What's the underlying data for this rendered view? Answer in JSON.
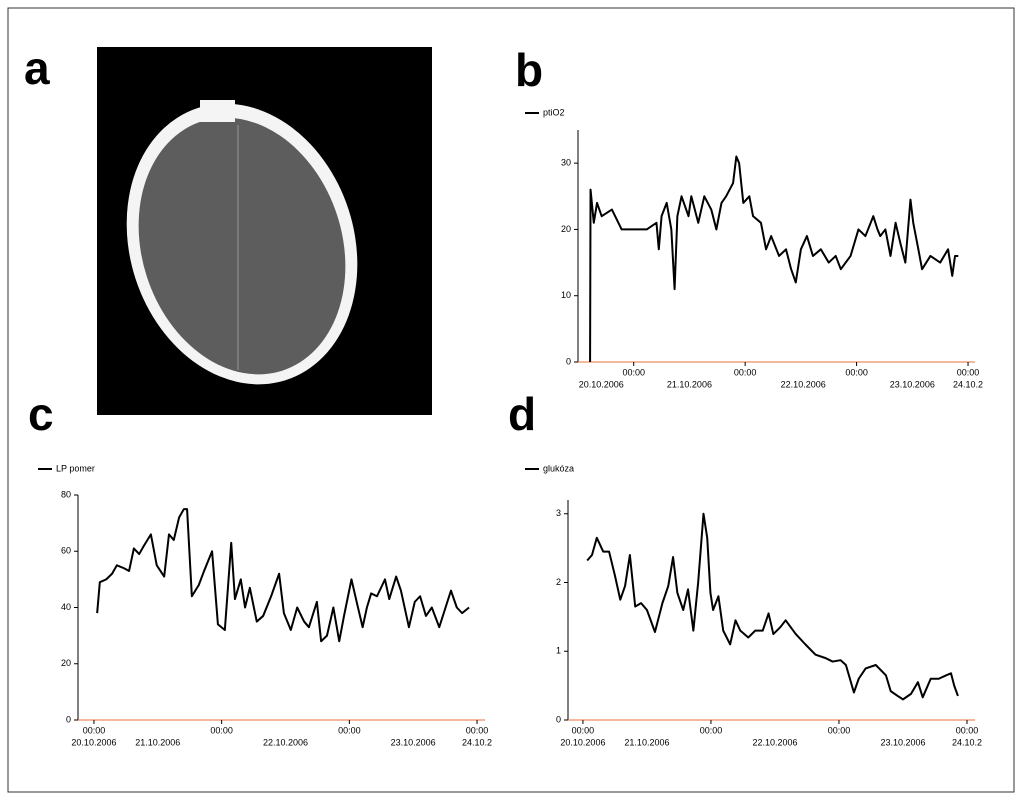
{
  "panel_labels": [
    "a",
    "b",
    "c",
    "d"
  ],
  "chart_data": [
    {
      "type": "line",
      "series": [
        {
          "name": "ptiO2",
          "color": "#000000",
          "values": [
            0,
            26,
            21,
            24,
            22,
            23,
            20,
            20,
            20,
            21,
            17,
            22,
            24,
            20,
            11,
            22,
            25,
            22,
            25,
            21,
            25,
            23,
            20,
            24,
            25,
            27,
            31,
            30,
            24,
            25,
            22,
            21,
            17,
            19,
            16,
            17,
            14,
            12,
            17,
            19,
            16,
            17,
            15,
            16,
            14,
            16,
            20,
            19,
            22,
            20,
            19,
            20,
            16,
            21,
            18,
            15,
            24.5,
            21,
            17,
            14,
            16,
            15,
            17,
            13,
            16,
            16
          ]
        }
      ],
      "x": [
        -9.4,
        -9.3,
        -8.6,
        -7.9,
        -6.9,
        -4.7,
        -2.6,
        0,
        2.8,
        4.9,
        5.4,
        6,
        7.1,
        8.1,
        8.8,
        9.4,
        10.3,
        11.8,
        12.4,
        13.9,
        15.2,
        16.7,
        17.8,
        18.9,
        19.9,
        21.4,
        22.1,
        22.7,
        23.6,
        24.9,
        25.7,
        27.4,
        28.5,
        29.6,
        31.3,
        32.8,
        33.9,
        34.9,
        36,
        37.3,
        38.6,
        40.3,
        42,
        43.5,
        44.6,
        46.7,
        48.4,
        49.9,
        51.6,
        52.5,
        53.1,
        54.2,
        55.3,
        56.4,
        57.4,
        58.5,
        59.6,
        60.2,
        61.3,
        62.1,
        63.9,
        66,
        67.7,
        68.6,
        69.2,
        69.9
      ],
      "xlim": [
        -12,
        73.5
      ],
      "ylim": [
        0,
        35
      ],
      "xticks": [
        {
          "value": 0,
          "label": "00:00"
        },
        {
          "value": 24,
          "label": "00:00"
        },
        {
          "value": 48,
          "label": "00:00"
        },
        {
          "value": 72,
          "label": "00:00"
        }
      ],
      "xdate_labels": [
        {
          "value": -7,
          "label": "20.10.2006"
        },
        {
          "value": 12,
          "label": "21.10.2006"
        },
        {
          "value": 36.5,
          "label": "22.10.2006"
        },
        {
          "value": 60,
          "label": "23.10.2006"
        },
        {
          "value": 72,
          "label": "24.10.2"
        }
      ],
      "yticks": [
        0,
        10,
        20,
        30
      ]
    },
    {
      "type": "line",
      "series": [
        {
          "name": "LP pomer",
          "color": "#000000",
          "values": [
            38,
            49,
            50,
            52,
            55,
            54,
            53,
            61,
            59,
            62,
            66,
            55,
            51,
            66,
            64,
            72,
            75,
            75,
            44,
            48,
            53,
            60,
            34,
            32,
            63,
            43,
            50,
            40,
            47,
            35,
            37,
            44,
            52,
            38,
            32,
            40,
            35,
            33,
            42,
            28,
            30,
            40,
            28,
            37,
            50,
            41,
            33,
            40,
            45,
            44,
            50,
            43,
            51,
            46,
            33,
            42,
            44,
            37,
            40,
            33,
            46,
            40,
            38,
            40
          ]
        }
      ],
      "x": [
        0.6,
        1.1,
        2.3,
        3.4,
        4.3,
        5.6,
        6.6,
        7.5,
        8.5,
        9.4,
        10.7,
        11.8,
        13.2,
        14.1,
        15,
        16,
        16.9,
        17.5,
        18.4,
        19.7,
        20.7,
        22.2,
        23.3,
        24.6,
        25.8,
        26.5,
        27.6,
        28.4,
        29.3,
        30.6,
        31.8,
        33.3,
        34.8,
        35.7,
        37,
        38.2,
        39.5,
        40.4,
        41.9,
        42.7,
        43.8,
        45,
        46.1,
        47,
        48.4,
        49.5,
        50.5,
        51.3,
        52.1,
        53.2,
        54.7,
        55.5,
        56.8,
        57.7,
        59.2,
        60.3,
        61.3,
        62.4,
        63.5,
        64.9,
        67.1,
        68.2,
        69.2,
        70.5
      ],
      "xlim": [
        -3,
        73.5
      ],
      "ylim": [
        0,
        80
      ],
      "xticks": [
        {
          "value": 0,
          "label": "00:00"
        },
        {
          "value": 24,
          "label": "00:00"
        },
        {
          "value": 48,
          "label": "00:00"
        },
        {
          "value": 72,
          "label": "00:00"
        }
      ],
      "xdate_labels": [
        {
          "value": 0,
          "label": "20.10.2006"
        },
        {
          "value": 12,
          "label": "21.10.2006"
        },
        {
          "value": 36,
          "label": "22.10.2006"
        },
        {
          "value": 60,
          "label": "23.10.2006"
        },
        {
          "value": 72,
          "label": "24.10.2"
        }
      ],
      "yticks": [
        0,
        20,
        40,
        60,
        80
      ]
    },
    {
      "type": "line",
      "series": [
        {
          "name": "glukóza",
          "color": "#000000",
          "values": [
            2.32,
            2.4,
            2.65,
            2.45,
            2.45,
            2.1,
            1.75,
            1.95,
            2.4,
            1.65,
            1.7,
            1.6,
            1.28,
            1.7,
            1.95,
            2.37,
            1.85,
            1.6,
            1.9,
            1.3,
            2.0,
            3.0,
            2.65,
            1.85,
            1.6,
            1.8,
            1.3,
            1.1,
            1.45,
            1.3,
            1.2,
            1.3,
            1.3,
            1.55,
            1.25,
            1.35,
            1.45,
            1.25,
            1.1,
            0.95,
            0.9,
            0.85,
            0.87,
            0.8,
            0.4,
            0.6,
            0.75,
            0.8,
            0.65,
            0.42,
            0.35,
            0.3,
            0.38,
            0.55,
            0.33,
            0.6,
            0.6,
            0.65,
            0.68,
            0.5,
            0.35
          ]
        }
      ],
      "x": [
        0.8,
        1.7,
        2.6,
        3.8,
        4.9,
        6,
        7,
        7.9,
        8.8,
        9.8,
        10.9,
        12,
        13.5,
        14.9,
        16,
        16.9,
        17.7,
        18.8,
        19.7,
        20.7,
        21.6,
        22.6,
        23.3,
        23.9,
        24.4,
        25.4,
        26.3,
        27.6,
        28.6,
        29.5,
        31,
        32.3,
        33.7,
        34.8,
        35.7,
        37,
        38,
        39.9,
        41.7,
        43.6,
        45.5,
        46.8,
        48.3,
        49.3,
        50.8,
        51.7,
        53,
        54.9,
        56.8,
        57.7,
        59,
        60,
        61.5,
        62.8,
        63.7,
        65.2,
        66.7,
        68.1,
        69,
        69.6,
        70.3
      ],
      "xlim": [
        -2.8,
        73.5
      ],
      "ylim": [
        0,
        3.2
      ],
      "xticks": [
        {
          "value": 0,
          "label": "00:00"
        },
        {
          "value": 24,
          "label": "00:00"
        },
        {
          "value": 48,
          "label": "00:00"
        },
        {
          "value": 72,
          "label": "00:00"
        }
      ],
      "xdate_labels": [
        {
          "value": 0,
          "label": "20.10.2006"
        },
        {
          "value": 12,
          "label": "21.10.2006"
        },
        {
          "value": 36,
          "label": "22.10.2006"
        },
        {
          "value": 60,
          "label": "23.10.2006"
        },
        {
          "value": 72,
          "label": "24.10.2"
        }
      ],
      "yticks": [
        0,
        1,
        2,
        3
      ]
    }
  ]
}
